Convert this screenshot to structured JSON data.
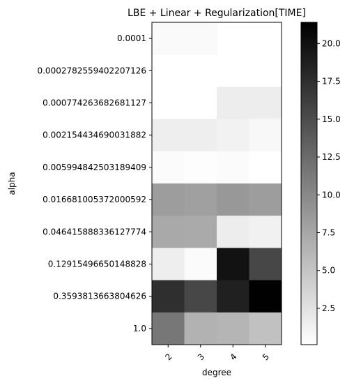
{
  "chart_data": {
    "type": "heatmap",
    "title": "LBE + Linear + Regularization[TIME]",
    "xlabel": "degree",
    "ylabel": "alpha",
    "x_categories": [
      "2",
      "3",
      "4",
      "5"
    ],
    "y_categories": [
      "0.0001",
      "0.0002782559402207126",
      "0.000774263682681127",
      "0.002154434690031882",
      "0.005994842503189409",
      "0.016681005372000592",
      "0.046415888336127774",
      "0.12915496650148828",
      "0.3593813663804626",
      "1.0"
    ],
    "values": [
      [
        0.5,
        0.5,
        null,
        null
      ],
      [
        null,
        null,
        null,
        null
      ],
      [
        null,
        null,
        1.6,
        1.6
      ],
      [
        1.5,
        1.5,
        1.2,
        0.7
      ],
      [
        0.4,
        0.3,
        0.4,
        0.1
      ],
      [
        8.3,
        8.0,
        8.7,
        8.3
      ],
      [
        7.3,
        7.2,
        1.6,
        1.3
      ],
      [
        1.5,
        0.4,
        19.9,
        15.5
      ],
      [
        17.5,
        15.5,
        18.7,
        21.3
      ],
      [
        11.5,
        6.5,
        6.3,
        5.3
      ]
    ],
    "colormap": "Greys",
    "vmin": 0.1,
    "vmax": 21.4,
    "colorbar_ticks": [
      "2.5",
      "5.0",
      "7.5",
      "10.0",
      "12.5",
      "15.0",
      "17.5",
      "20.0"
    ]
  }
}
